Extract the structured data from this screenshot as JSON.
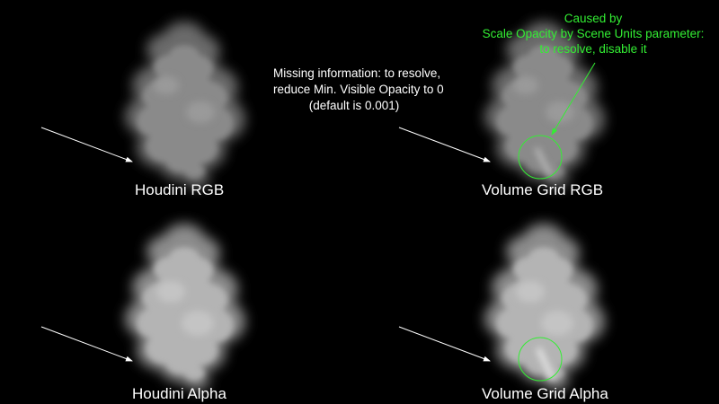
{
  "panels": [
    {
      "caption": "Houdini RGB"
    },
    {
      "caption": "Volume Grid RGB"
    },
    {
      "caption": "Houdini Alpha"
    },
    {
      "caption": "Volume Grid Alpha"
    }
  ],
  "notes": {
    "missing_info": [
      "Missing information: to resolve,",
      "reduce Min. Visible Opacity to 0",
      "(default is 0.001)"
    ],
    "caused_by": [
      "Caused by",
      "Scale Opacity by Scene Units parameter:",
      "to resolve, disable it"
    ]
  },
  "colors": {
    "background": "#000000",
    "text": "#ffffff",
    "highlight": "#33ee33",
    "arrow": "#ffffff"
  }
}
